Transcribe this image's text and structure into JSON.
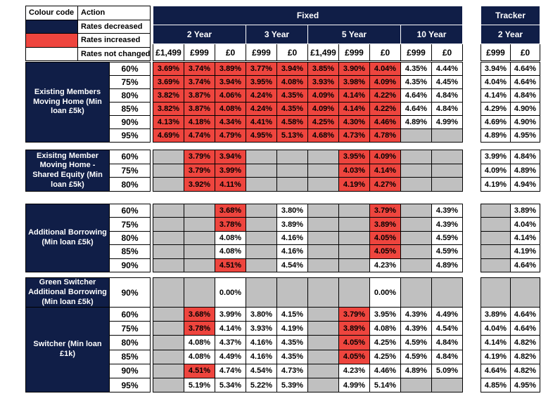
{
  "legend": {
    "col1_header": "Colour code",
    "col2_header": "Action",
    "rows": [
      {
        "color": "#101e47",
        "label": "Rates decreased"
      },
      {
        "color": "#ee453e",
        "label": "Rates increased"
      },
      {
        "color": "#ffffff",
        "label": "Rates not changed"
      }
    ]
  },
  "header": {
    "fixed_label": "Fixed",
    "tracker_label": "Tracker",
    "fixed_groups": [
      {
        "label": "2 Year",
        "fees": [
          "£1,499",
          "£999",
          "£0"
        ]
      },
      {
        "label": "3 Year",
        "fees": [
          "£999",
          "£0"
        ]
      },
      {
        "label": "5 Year",
        "fees": [
          "£1,499",
          "£999",
          "£0"
        ]
      },
      {
        "label": "10 Year",
        "fees": [
          "£999",
          "£0"
        ]
      }
    ],
    "tracker_group": {
      "label": "2 Year",
      "fees": [
        "£999",
        "£0"
      ]
    }
  },
  "cell_styles": {
    "r": {
      "meaning": "rates increased",
      "bg": "#ee453e"
    },
    "w": {
      "meaning": "rates not changed",
      "bg": "#ffffff"
    },
    "g": {
      "meaning": "not available",
      "bg": "#c0c0c0"
    }
  },
  "sections": [
    {
      "label": "Existing Members Moving Home (Min loan £5k)",
      "rows": [
        {
          "ltv": "60%",
          "cells": [
            "r:3.69%",
            "r:3.74%",
            "r:3.89%",
            "r:3.77%",
            "r:3.94%",
            "r:3.85%",
            "r:3.90%",
            "r:4.04%",
            "w:4.35%",
            "w:4.44%",
            "w:3.94%",
            "w:4.64%"
          ]
        },
        {
          "ltv": "75%",
          "cells": [
            "r:3.69%",
            "r:3.74%",
            "r:3.94%",
            "r:3.95%",
            "r:4.08%",
            "r:3.93%",
            "r:3.98%",
            "r:4.09%",
            "w:4.35%",
            "w:4.45%",
            "w:4.04%",
            "w:4.64%"
          ]
        },
        {
          "ltv": "80%",
          "cells": [
            "r:3.82%",
            "r:3.87%",
            "r:4.06%",
            "r:4.24%",
            "r:4.35%",
            "r:4.09%",
            "r:4.14%",
            "r:4.22%",
            "w:4.64%",
            "w:4.84%",
            "w:4.14%",
            "w:4.84%"
          ]
        },
        {
          "ltv": "85%",
          "cells": [
            "r:3.82%",
            "r:3.87%",
            "r:4.08%",
            "r:4.24%",
            "r:4.35%",
            "r:4.09%",
            "r:4.14%",
            "r:4.22%",
            "w:4.64%",
            "w:4.84%",
            "w:4.29%",
            "w:4.90%"
          ]
        },
        {
          "ltv": "90%",
          "cells": [
            "r:4.13%",
            "r:4.18%",
            "r:4.34%",
            "r:4.41%",
            "r:4.58%",
            "r:4.25%",
            "r:4.30%",
            "r:4.46%",
            "w:4.89%",
            "w:4.99%",
            "w:4.69%",
            "w:4.90%"
          ]
        },
        {
          "ltv": "95%",
          "cells": [
            "r:4.69%",
            "r:4.74%",
            "r:4.79%",
            "r:4.95%",
            "r:5.13%",
            "r:4.68%",
            "r:4.73%",
            "r:4.78%",
            "g",
            "g",
            "w:4.89%",
            "w:4.95%"
          ]
        }
      ]
    },
    {
      "label": "Exisitng Member Moving Home - Shared Equity (Min loan £5k)",
      "rows": [
        {
          "ltv": "60%",
          "cells": [
            "g",
            "r:3.79%",
            "r:3.94%",
            "g",
            "g",
            "g",
            "r:3.95%",
            "r:4.09%",
            "g",
            "g",
            "w:3.99%",
            "w:4.84%"
          ]
        },
        {
          "ltv": "75%",
          "cells": [
            "g",
            "r:3.79%",
            "r:3.99%",
            "g",
            "g",
            "g",
            "r:4.03%",
            "r:4.14%",
            "g",
            "g",
            "w:4.09%",
            "w:4.89%"
          ]
        },
        {
          "ltv": "80%",
          "cells": [
            "g",
            "r:3.92%",
            "r:4.11%",
            "g",
            "g",
            "g",
            "r:4.19%",
            "r:4.27%",
            "g",
            "g",
            "w:4.19%",
            "w:4.94%"
          ]
        }
      ]
    },
    {
      "label": "Additional Borrowing (Min loan £5k)",
      "rows": [
        {
          "ltv": "60%",
          "cells": [
            "g",
            "g",
            "r:3.68%",
            "g",
            "w:3.80%",
            "g",
            "g",
            "r:3.79%",
            "g",
            "w:4.39%",
            "g",
            "w:3.89%"
          ]
        },
        {
          "ltv": "75%",
          "cells": [
            "g",
            "g",
            "r:3.78%",
            "g",
            "w:3.89%",
            "g",
            "g",
            "r:3.89%",
            "g",
            "w:4.39%",
            "g",
            "w:4.04%"
          ]
        },
        {
          "ltv": "80%",
          "cells": [
            "g",
            "g",
            "w:4.08%",
            "g",
            "w:4.16%",
            "g",
            "g",
            "r:4.05%",
            "g",
            "w:4.59%",
            "g",
            "w:4.14%"
          ]
        },
        {
          "ltv": "85%",
          "cells": [
            "g",
            "g",
            "w:4.08%",
            "g",
            "w:4.16%",
            "g",
            "g",
            "r:4.05%",
            "g",
            "w:4.59%",
            "g",
            "w:4.19%"
          ]
        },
        {
          "ltv": "90%",
          "cells": [
            "g",
            "g",
            "r:4.51%",
            "g",
            "w:4.54%",
            "g",
            "g",
            "w:4.23%",
            "g",
            "w:4.89%",
            "g",
            "w:4.64%"
          ]
        }
      ]
    },
    {
      "label": "Green Switcher Additional Borrowing (Min loan £5k)",
      "rows": [
        {
          "ltv": "90%",
          "cells": [
            "g",
            "g",
            "w:0.00%",
            "g",
            "g",
            "g",
            "g",
            "w:0.00%",
            "g",
            "g",
            "g",
            "g"
          ]
        }
      ]
    },
    {
      "label": "Switcher (Min loan £1k)",
      "rows": [
        {
          "ltv": "60%",
          "cells": [
            "g",
            "r:3.68%",
            "w:3.99%",
            "w:3.80%",
            "w:4.15%",
            "g",
            "r:3.79%",
            "w:3.95%",
            "w:4.39%",
            "w:4.49%",
            "w:3.89%",
            "w:4.64%"
          ]
        },
        {
          "ltv": "75%",
          "cells": [
            "g",
            "r:3.78%",
            "w:4.14%",
            "w:3.93%",
            "w:4.19%",
            "g",
            "r:3.89%",
            "w:4.08%",
            "w:4.39%",
            "w:4.54%",
            "w:4.04%",
            "w:4.64%"
          ]
        },
        {
          "ltv": "80%",
          "cells": [
            "g",
            "w:4.08%",
            "w:4.37%",
            "w:4.16%",
            "w:4.35%",
            "g",
            "r:4.05%",
            "w:4.25%",
            "w:4.59%",
            "w:4.84%",
            "w:4.14%",
            "w:4.82%"
          ]
        },
        {
          "ltv": "85%",
          "cells": [
            "g",
            "w:4.08%",
            "w:4.49%",
            "w:4.16%",
            "w:4.35%",
            "g",
            "r:4.05%",
            "w:4.25%",
            "w:4.59%",
            "w:4.84%",
            "w:4.19%",
            "w:4.82%"
          ]
        },
        {
          "ltv": "90%",
          "cells": [
            "g",
            "r:4.51%",
            "w:4.74%",
            "w:4.54%",
            "w:4.73%",
            "g",
            "w:4.23%",
            "w:4.46%",
            "w:4.89%",
            "w:5.09%",
            "w:4.64%",
            "w:4.82%"
          ]
        },
        {
          "ltv": "95%",
          "cells": [
            "g",
            "w:5.19%",
            "w:5.34%",
            "w:5.22%",
            "w:5.39%",
            "g",
            "w:4.99%",
            "w:5.14%",
            "g",
            "g",
            "w:4.85%",
            "w:4.95%"
          ]
        }
      ]
    }
  ]
}
